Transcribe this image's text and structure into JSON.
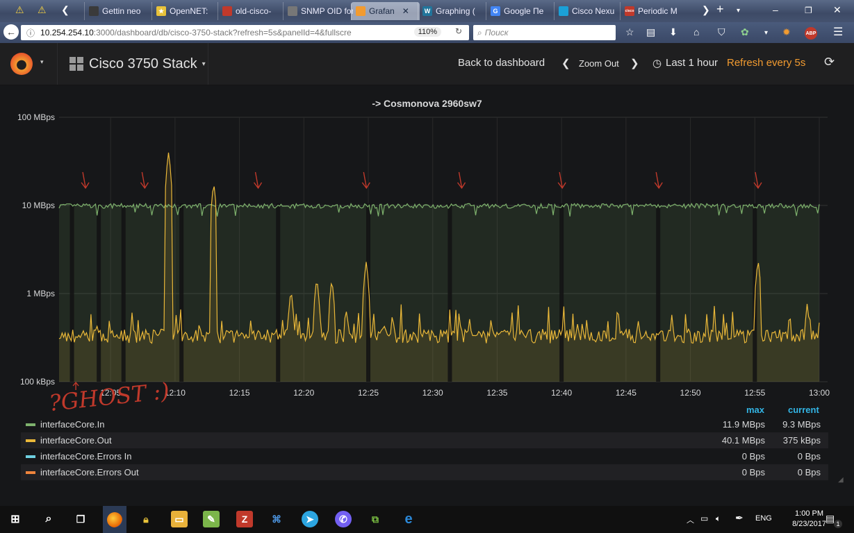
{
  "browser": {
    "tabs": [
      {
        "title": "Gettin neo",
        "color": "#3a3a3a",
        "glyph": ""
      },
      {
        "title": "OpenNET:",
        "color": "#e8c23a",
        "glyph": "★"
      },
      {
        "title": "old-cisco-",
        "color": "#c0392b",
        "glyph": ""
      },
      {
        "title": "SNMP OID for",
        "color": "#777",
        "glyph": ""
      },
      {
        "title": "Grafan",
        "color": "#f29b30",
        "glyph": "",
        "active": true
      },
      {
        "title": "Graphing (",
        "color": "#21759b",
        "glyph": "W"
      },
      {
        "title": "Google Пе",
        "color": "#4285f4",
        "glyph": "G"
      },
      {
        "title": "Cisco Nexu",
        "color": "#1ba0d7",
        "glyph": ""
      },
      {
        "title": "Periodic M",
        "color": "#c0392b",
        "glyph": "cisco"
      }
    ],
    "url_host": "10.254.254.10",
    "url_rest": ":3000/dashboard/db/cisco-3750-stack?refresh=5s&panelId=4&fullscre",
    "zoom": "110%",
    "search_placeholder": "Поиск"
  },
  "grafana": {
    "dashboard_title": "Cisco 3750 Stack",
    "back_label": "Back to dashboard",
    "zoom_out_label": "Zoom Out",
    "time_range_label": "Last 1 hour",
    "refresh_label": "Refresh every 5s"
  },
  "panel": {
    "title": "-> Cosmonova 2960sw7",
    "legend_headers": {
      "max": "max",
      "current": "current"
    },
    "legend": [
      {
        "name": "interfaceCore.In",
        "color": "#7eb26d",
        "max": "11.9 MBps",
        "current": "9.3 MBps"
      },
      {
        "name": "interfaceCore.Out",
        "color": "#eab839",
        "max": "40.1 MBps",
        "current": "375 kBps"
      },
      {
        "name": "interfaceCore.Errors In",
        "color": "#6ed0e0",
        "max": "0 Bps",
        "current": "0 Bps"
      },
      {
        "name": "interfaceCore.Errors Out",
        "color": "#ef843c",
        "max": "0 Bps",
        "current": "0 Bps"
      }
    ],
    "annotation_text": "?GHOST :)"
  },
  "chart_data": {
    "type": "line",
    "scale": "log",
    "y_tick_labels": [
      "100 MBps",
      "10 MBps",
      "1 MBps",
      "100 kBps"
    ],
    "ylim": [
      0.1,
      100
    ],
    "x_tick_labels": [
      "12:05",
      "12:10",
      "12:15",
      "12:20",
      "12:25",
      "12:30",
      "12:35",
      "12:40",
      "12:45",
      "12:50",
      "12:55",
      "13:00"
    ],
    "xlim": [
      "12:01",
      "13:00"
    ],
    "grid": true,
    "series": [
      {
        "name": "interfaceCore.In",
        "color": "#7eb26d",
        "baseline_MBps": 10,
        "min_MBps": 7.9,
        "max_MBps": 11.9
      },
      {
        "name": "interfaceCore.Out",
        "color": "#eab839",
        "baseline_MBps": 0.35,
        "spikes": [
          {
            "time": "12:09:30",
            "MBps": 40.1
          },
          {
            "time": "12:13:00",
            "MBps": 18
          },
          {
            "time": "12:24:50",
            "MBps": 2.3
          },
          {
            "time": "12:55:15",
            "MBps": 2.4
          },
          {
            "time": "12:21:00",
            "MBps": 1.5
          },
          {
            "time": "12:22:10",
            "MBps": 1.45
          },
          {
            "time": "12:19:00",
            "MBps": 1.1
          }
        ]
      },
      {
        "name": "interfaceCore.Errors In",
        "color": "#6ed0e0",
        "values_MBps": [
          0
        ]
      },
      {
        "name": "interfaceCore.Errors Out",
        "color": "#ef843c",
        "values_MBps": [
          0
        ]
      }
    ],
    "gap_times": [
      "12:02:00",
      "12:04:05",
      "12:06:00",
      "12:10:30",
      "12:18:00",
      "12:25:00",
      "12:31:20",
      "12:40:00",
      "12:47:30",
      "12:55:00"
    ]
  },
  "taskbar": {
    "language": "ENG",
    "time": "1:00 PM",
    "date": "8/23/2017",
    "notif_count": "1"
  }
}
